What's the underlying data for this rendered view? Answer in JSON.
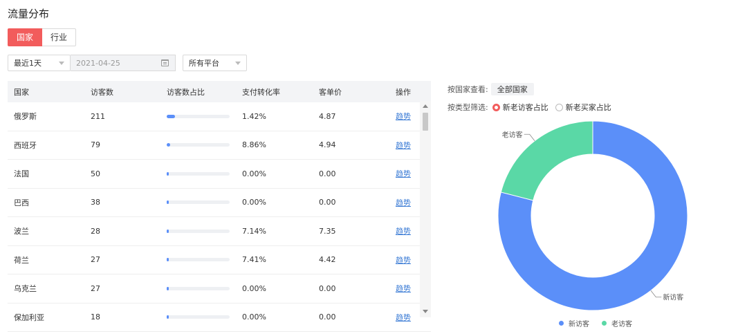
{
  "page": {
    "title": "流量分布"
  },
  "tabs": [
    {
      "label": "国家",
      "active": true
    },
    {
      "label": "行业",
      "active": false
    }
  ],
  "filters": {
    "range": "最近1天",
    "date": "2021-04-25",
    "platform": "所有平台"
  },
  "table": {
    "headers": [
      "国家",
      "访客数",
      "访客数占比",
      "支付转化率",
      "客单价",
      "操作"
    ],
    "rows": [
      {
        "country": "俄罗斯",
        "visitors": "211",
        "share": 0.13,
        "conversion": "1.42%",
        "price": "4.87",
        "action": "趋势"
      },
      {
        "country": "西班牙",
        "visitors": "79",
        "share": 0.05,
        "conversion": "8.86%",
        "price": "4.94",
        "action": "趋势"
      },
      {
        "country": "法国",
        "visitors": "50",
        "share": 0.03,
        "conversion": "0.00%",
        "price": "0.00",
        "action": "趋势"
      },
      {
        "country": "巴西",
        "visitors": "38",
        "share": 0.02,
        "conversion": "0.00%",
        "price": "0.00",
        "action": "趋势"
      },
      {
        "country": "波兰",
        "visitors": "28",
        "share": 0.02,
        "conversion": "7.14%",
        "price": "7.35",
        "action": "趋势"
      },
      {
        "country": "荷兰",
        "visitors": "27",
        "share": 0.02,
        "conversion": "7.41%",
        "price": "4.42",
        "action": "趋势"
      },
      {
        "country": "乌克兰",
        "visitors": "27",
        "share": 0.02,
        "conversion": "0.00%",
        "price": "0.00",
        "action": "趋势"
      },
      {
        "country": "保加利亚",
        "visitors": "18",
        "share": 0.01,
        "conversion": "0.00%",
        "price": "0.00",
        "action": "趋势"
      }
    ]
  },
  "side": {
    "country_label": "按国家查看:",
    "country_value": "全部国家",
    "type_label": "按类型筛选:",
    "option_new_old_visitors": "新老访客占比",
    "option_new_old_buyers": "新老买家占比"
  },
  "chart_data": {
    "type": "pie",
    "slices": [
      {
        "name": "新访客",
        "value": 79,
        "color": "#5b8ff9"
      },
      {
        "name": "老访客",
        "value": 21,
        "color": "#5ad8a6"
      }
    ],
    "legend": [
      "新访客",
      "老访客"
    ]
  }
}
